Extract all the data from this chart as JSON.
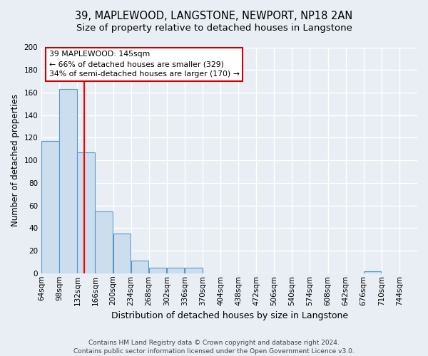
{
  "title": "39, MAPLEWOOD, LANGSTONE, NEWPORT, NP18 2AN",
  "subtitle": "Size of property relative to detached houses in Langstone",
  "xlabel": "Distribution of detached houses by size in Langstone",
  "ylabel": "Number of detached properties",
  "bin_edges": [
    64,
    98,
    132,
    166,
    200,
    234,
    268,
    302,
    336,
    370,
    404,
    438,
    472,
    506,
    540,
    574,
    608,
    642,
    676,
    710,
    744
  ],
  "bar_heights": [
    117,
    163,
    107,
    55,
    35,
    11,
    5,
    5,
    5,
    0,
    0,
    0,
    0,
    0,
    0,
    0,
    0,
    0,
    2,
    0,
    0
  ],
  "bar_color": "#ccdded",
  "bar_edge_color": "#5599cc",
  "red_line_x": 145,
  "ylim": [
    0,
    200
  ],
  "yticks": [
    0,
    20,
    40,
    60,
    80,
    100,
    120,
    140,
    160,
    180,
    200
  ],
  "annotation_line1": "39 MAPLEWOOD: 145sqm",
  "annotation_line2": "← 66% of detached houses are smaller (329)",
  "annotation_line3": "34% of semi-detached houses are larger (170) →",
  "annotation_box_color": "#ffffff",
  "annotation_box_edge_color": "#cc0000",
  "footnote": "Contains HM Land Registry data © Crown copyright and database right 2024.\nContains public sector information licensed under the Open Government Licence v3.0.",
  "background_color": "#e8eef4",
  "grid_color": "#ffffff",
  "title_fontsize": 10.5,
  "subtitle_fontsize": 9.5,
  "ylabel_fontsize": 8.5,
  "xlabel_fontsize": 9,
  "tick_fontsize": 7.5,
  "footnote_fontsize": 6.5
}
